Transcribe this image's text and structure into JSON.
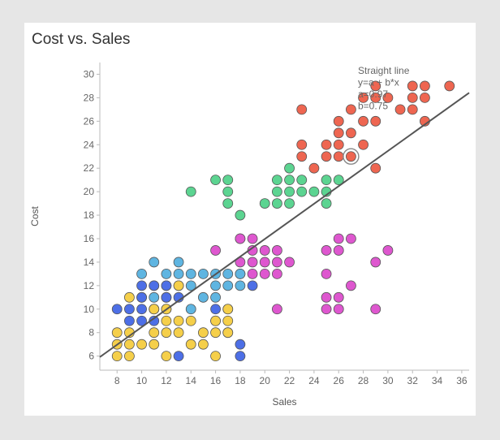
{
  "chart_data": {
    "type": "scatter",
    "title": "Cost vs. Sales",
    "xlabel": "Sales",
    "ylabel": "Cost",
    "xlim": [
      6.6,
      36.6
    ],
    "ylim": [
      4.8,
      31.0
    ],
    "xticks": [
      8,
      10,
      12,
      14,
      16,
      18,
      20,
      22,
      24,
      26,
      28,
      30,
      32,
      34,
      36
    ],
    "yticks": [
      6,
      8,
      10,
      12,
      14,
      16,
      18,
      20,
      22,
      24,
      26,
      28,
      30
    ],
    "grid": false,
    "fit_line": {
      "a": 0.97,
      "b": 0.75,
      "x_range": [
        6.6,
        36.6
      ]
    },
    "annotation": [
      "Straight line",
      "y=a + b*x",
      "a=0.97",
      "b=0.75"
    ],
    "highlighted_point": {
      "x": 27,
      "y": 23
    },
    "series": [
      {
        "color": "#ee6651",
        "points": [
          [
            23,
            27
          ],
          [
            23,
            24
          ],
          [
            23,
            23
          ],
          [
            24,
            22
          ],
          [
            25,
            24
          ],
          [
            25,
            23
          ],
          [
            26,
            26
          ],
          [
            26,
            25
          ],
          [
            26,
            24
          ],
          [
            26,
            23
          ],
          [
            27,
            27
          ],
          [
            27,
            25
          ],
          [
            27,
            23
          ],
          [
            28,
            28
          ],
          [
            28,
            26
          ],
          [
            28,
            24
          ],
          [
            29,
            29
          ],
          [
            29,
            28
          ],
          [
            29,
            26
          ],
          [
            29,
            22
          ],
          [
            30,
            28
          ],
          [
            31,
            27
          ],
          [
            32,
            29
          ],
          [
            32,
            28
          ],
          [
            32,
            27
          ],
          [
            33,
            29
          ],
          [
            33,
            28
          ],
          [
            33,
            26
          ],
          [
            35,
            29
          ]
        ]
      },
      {
        "color": "#5cd491",
        "points": [
          [
            14,
            20
          ],
          [
            16,
            21
          ],
          [
            17,
            21
          ],
          [
            17,
            20
          ],
          [
            17,
            19
          ],
          [
            18,
            18
          ],
          [
            18,
            16
          ],
          [
            20,
            19
          ],
          [
            21,
            21
          ],
          [
            21,
            20
          ],
          [
            21,
            19
          ],
          [
            22,
            22
          ],
          [
            22,
            21
          ],
          [
            22,
            20
          ],
          [
            22,
            19
          ],
          [
            23,
            21
          ],
          [
            23,
            20
          ],
          [
            24,
            20
          ],
          [
            25,
            21
          ],
          [
            25,
            20
          ],
          [
            25,
            19
          ],
          [
            26,
            21
          ]
        ]
      },
      {
        "color": "#de57cf",
        "points": [
          [
            16,
            15
          ],
          [
            18,
            16
          ],
          [
            18,
            14
          ],
          [
            18,
            13
          ],
          [
            19,
            16
          ],
          [
            19,
            15
          ],
          [
            19,
            14
          ],
          [
            19,
            13
          ],
          [
            20,
            15
          ],
          [
            20,
            14
          ],
          [
            20,
            13
          ],
          [
            21,
            15
          ],
          [
            21,
            14
          ],
          [
            21,
            13
          ],
          [
            21,
            10
          ],
          [
            22,
            14
          ],
          [
            25,
            15
          ],
          [
            25,
            13
          ],
          [
            25,
            11
          ],
          [
            25,
            10
          ],
          [
            26,
            16
          ],
          [
            26,
            15
          ],
          [
            26,
            11
          ],
          [
            26,
            10
          ],
          [
            27,
            16
          ],
          [
            27,
            12
          ],
          [
            29,
            14
          ],
          [
            29,
            10
          ],
          [
            30,
            15
          ]
        ]
      },
      {
        "color": "#5fb5e1",
        "points": [
          [
            10,
            13
          ],
          [
            10,
            11
          ],
          [
            11,
            14
          ],
          [
            11,
            12
          ],
          [
            11,
            11
          ],
          [
            11,
            10
          ],
          [
            12,
            13
          ],
          [
            12,
            12
          ],
          [
            12,
            11
          ],
          [
            13,
            14
          ],
          [
            13,
            13
          ],
          [
            13,
            12
          ],
          [
            14,
            13
          ],
          [
            14,
            12
          ],
          [
            14,
            10
          ],
          [
            15,
            13
          ],
          [
            15,
            11
          ],
          [
            16,
            13
          ],
          [
            16,
            12
          ],
          [
            16,
            11
          ],
          [
            17,
            13
          ],
          [
            17,
            12
          ],
          [
            18,
            13
          ],
          [
            18,
            12
          ]
        ]
      },
      {
        "color": "#4d6fe6",
        "points": [
          [
            8,
            10
          ],
          [
            9,
            10
          ],
          [
            9,
            9
          ],
          [
            10,
            12
          ],
          [
            10,
            11
          ],
          [
            10,
            10
          ],
          [
            10,
            9
          ],
          [
            11,
            12
          ],
          [
            11,
            10
          ],
          [
            11,
            9
          ],
          [
            12,
            12
          ],
          [
            12,
            11
          ],
          [
            12,
            10
          ],
          [
            13,
            11
          ],
          [
            13,
            6
          ],
          [
            16,
            10
          ],
          [
            16,
            9
          ],
          [
            17,
            10
          ],
          [
            17,
            8
          ],
          [
            18,
            7
          ],
          [
            18,
            6
          ],
          [
            19,
            12
          ]
        ]
      },
      {
        "color": "#f5cf4a",
        "points": [
          [
            8,
            8
          ],
          [
            8,
            7
          ],
          [
            8,
            6
          ],
          [
            9,
            11
          ],
          [
            9,
            8
          ],
          [
            9,
            7
          ],
          [
            9,
            6
          ],
          [
            10,
            7
          ],
          [
            11,
            10
          ],
          [
            11,
            8
          ],
          [
            11,
            7
          ],
          [
            12,
            10
          ],
          [
            12,
            9
          ],
          [
            12,
            8
          ],
          [
            12,
            6
          ],
          [
            13,
            12
          ],
          [
            13,
            9
          ],
          [
            13,
            8
          ],
          [
            14,
            9
          ],
          [
            14,
            7
          ],
          [
            15,
            8
          ],
          [
            15,
            7
          ],
          [
            16,
            9
          ],
          [
            16,
            8
          ],
          [
            16,
            6
          ],
          [
            17,
            10
          ],
          [
            17,
            9
          ],
          [
            17,
            8
          ]
        ]
      }
    ]
  }
}
